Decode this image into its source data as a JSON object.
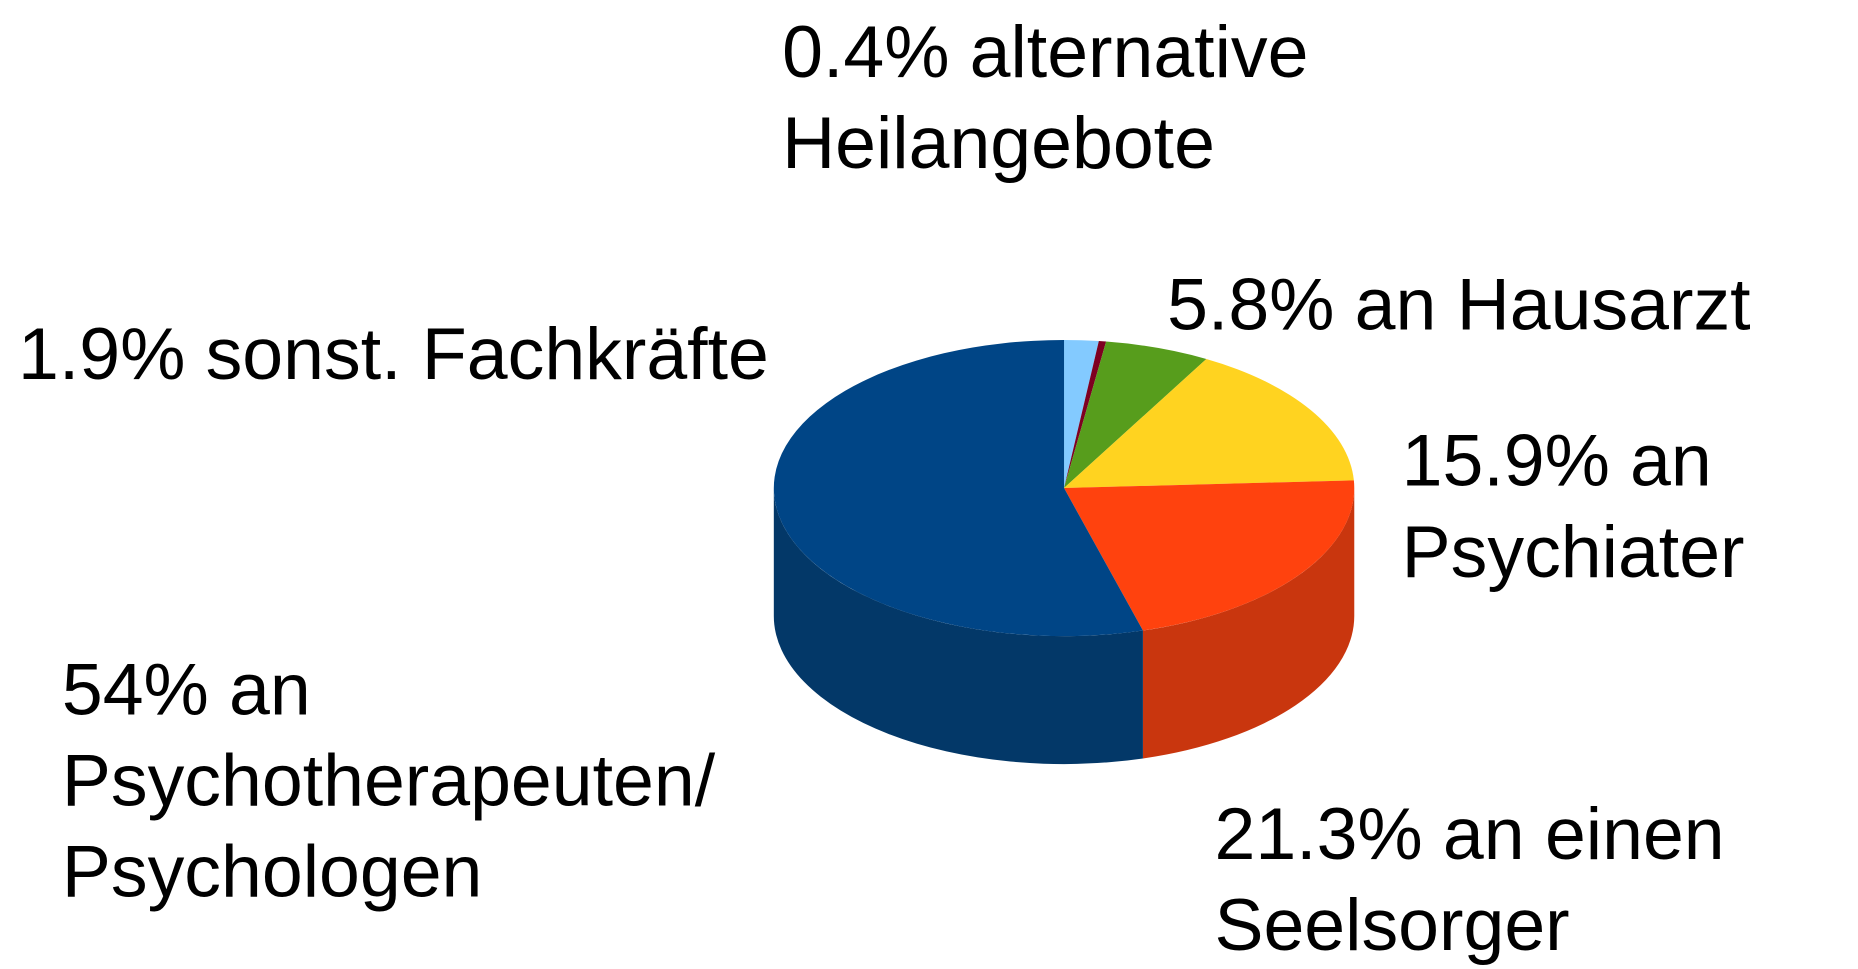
{
  "chart_data": {
    "type": "pie3d",
    "categories": [
      [
        "sonst. Fachkräfte"
      ],
      [
        "alternative",
        "Heilangebote"
      ],
      [
        "an Hausarzt"
      ],
      [
        "an",
        "Psychiater"
      ],
      [
        "an einen",
        "Seelsorger"
      ],
      [
        "an",
        "Psychotherapeuten/",
        "Psychologen"
      ]
    ],
    "values": [
      1.9,
      0.4,
      5.8,
      15.9,
      21.3,
      54
    ],
    "value_labels": [
      "1.9%",
      "0.4%",
      "5.8%",
      "15.9%",
      "21.3%",
      "54%"
    ],
    "colors": [
      "#83caff",
      "#7e0021",
      "#579d1c",
      "#ffd320",
      "#ff420e",
      "#004586"
    ],
    "side_colors": [
      "#6aa3cf",
      "#5e0018",
      "#417515",
      "#c9a319",
      "#c9360e",
      "#033868"
    ]
  }
}
